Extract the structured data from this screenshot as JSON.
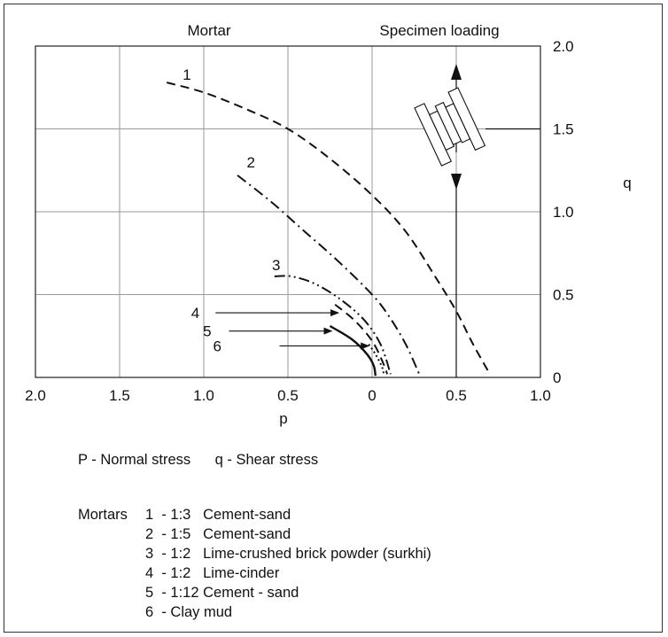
{
  "chart_data": {
    "type": "line",
    "header_left": "Mortar",
    "header_right": "Specimen loading",
    "xlabel": "p",
    "ylabel": "q",
    "x_ticks": [
      "2.0",
      "1.5",
      "1.0",
      "0.5",
      "0",
      "0.5",
      "1.0"
    ],
    "y_ticks": [
      "0",
      "0.5",
      "1.0",
      "1.5",
      "2.0"
    ],
    "xlim": [
      -2.0,
      1.0
    ],
    "ylim": [
      0,
      2.0
    ],
    "grid": true,
    "series": [
      {
        "name": "1",
        "style": "dashed",
        "points": [
          [
            -1.22,
            1.78
          ],
          [
            -1.0,
            1.72
          ],
          [
            -0.75,
            1.62
          ],
          [
            -0.5,
            1.5
          ],
          [
            -0.25,
            1.32
          ],
          [
            0.0,
            1.1
          ],
          [
            0.2,
            0.88
          ],
          [
            0.38,
            0.6
          ],
          [
            0.5,
            0.4
          ],
          [
            0.6,
            0.2
          ],
          [
            0.7,
            0.02
          ]
        ]
      },
      {
        "name": "2",
        "style": "dashdot",
        "points": [
          [
            -0.8,
            1.22
          ],
          [
            -0.6,
            1.06
          ],
          [
            -0.4,
            0.88
          ],
          [
            -0.2,
            0.7
          ],
          [
            0.0,
            0.5
          ],
          [
            0.1,
            0.37
          ],
          [
            0.2,
            0.2
          ],
          [
            0.28,
            0.02
          ]
        ]
      },
      {
        "name": "3",
        "style": "dashdotdot",
        "points": [
          [
            -0.58,
            0.61
          ],
          [
            -0.48,
            0.61
          ],
          [
            -0.35,
            0.57
          ],
          [
            -0.2,
            0.48
          ],
          [
            -0.05,
            0.35
          ],
          [
            0.05,
            0.2
          ],
          [
            0.11,
            0.02
          ]
        ]
      },
      {
        "name": "4",
        "style": "dashed",
        "points": [
          [
            -0.22,
            0.44
          ],
          [
            -0.1,
            0.34
          ],
          [
            0.0,
            0.22
          ],
          [
            0.06,
            0.1
          ],
          [
            0.09,
            0.02
          ]
        ]
      },
      {
        "name": "5",
        "style": "solid",
        "points": [
          [
            -0.25,
            0.31
          ],
          [
            -0.12,
            0.23
          ],
          [
            -0.03,
            0.14
          ],
          [
            0.01,
            0.07
          ],
          [
            0.02,
            0.01
          ]
        ]
      },
      {
        "name": "6",
        "style": "dotted",
        "points": [
          [
            -0.02,
            0.2
          ],
          [
            0.02,
            0.14
          ],
          [
            0.06,
            0.06
          ],
          [
            0.07,
            0.01
          ]
        ]
      }
    ],
    "curve_labels": [
      {
        "text": "1",
        "x": -1.1,
        "y": 1.83
      },
      {
        "text": "2",
        "x": -0.72,
        "y": 1.3
      },
      {
        "text": "3",
        "x": -0.57,
        "y": 0.68
      },
      {
        "text": "4",
        "x": -1.05,
        "y": 0.39
      },
      {
        "text": "5",
        "x": -0.98,
        "y": 0.28
      },
      {
        "text": "6",
        "x": -0.92,
        "y": 0.19
      }
    ],
    "label_arrows": [
      {
        "from": [
          -0.93,
          0.39
        ],
        "to": [
          -0.2,
          0.39
        ]
      },
      {
        "from": [
          -0.85,
          0.28
        ],
        "to": [
          -0.24,
          0.28
        ]
      },
      {
        "from": [
          -0.55,
          0.19
        ],
        "to": [
          -0.02,
          0.19
        ]
      }
    ],
    "loading_axis_x": 0.5
  },
  "legend": {
    "stress_line": "P - Normal stress      q - Shear stress",
    "mortars_label": "Mortars",
    "items": [
      "1  - 1:3   Cement-sand",
      "2  - 1:5   Cement-sand",
      "3  - 1:2   Lime-crushed brick powder (surkhi)",
      "4  - 1:2   Lime-cinder",
      "5  - 1:12 Cement - sand",
      "6  - Clay mud"
    ]
  }
}
